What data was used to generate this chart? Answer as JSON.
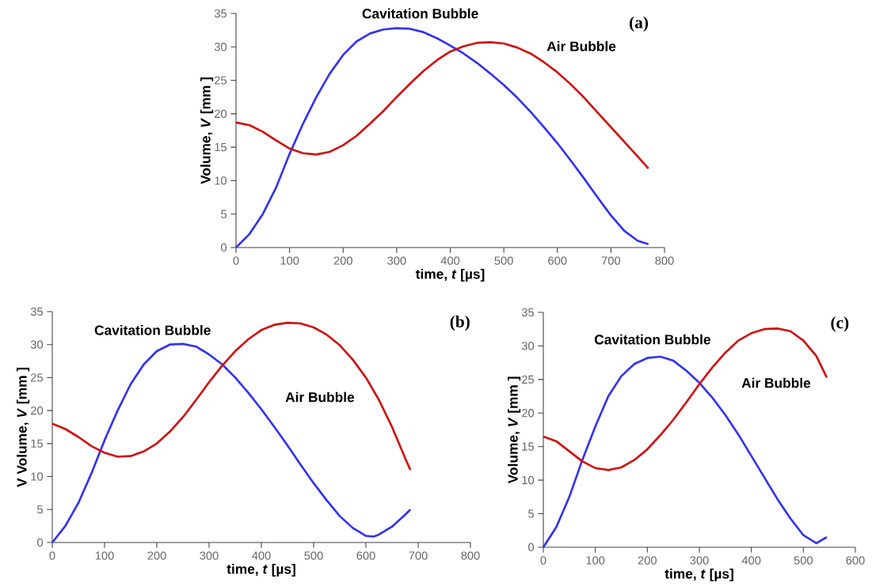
{
  "chart_data": [
    {
      "type": "line",
      "title": "(a)",
      "xlabel": "time, *t* [µs]",
      "ylabel": "Volume, *V* [mm ]",
      "xlim": [
        0,
        800
      ],
      "ylim": [
        0,
        35
      ],
      "xticks": [
        0,
        100,
        200,
        300,
        400,
        500,
        600,
        700,
        800
      ],
      "yticks": [
        0,
        5,
        10,
        15,
        20,
        25,
        30,
        35
      ],
      "series": [
        {
          "name": "Cavitation Bubble",
          "color": "#3333ee",
          "x": [
            0,
            25,
            50,
            75,
            100,
            125,
            150,
            175,
            200,
            225,
            250,
            275,
            300,
            325,
            350,
            375,
            400,
            425,
            450,
            475,
            500,
            525,
            550,
            575,
            600,
            625,
            650,
            675,
            700,
            725,
            750,
            770
          ],
          "values": [
            0,
            2,
            5,
            9,
            14,
            18.5,
            22.5,
            26,
            28.8,
            30.8,
            32,
            32.6,
            32.8,
            32.7,
            32.2,
            31.3,
            30.2,
            29,
            27.6,
            26,
            24.3,
            22.4,
            20.3,
            18,
            15.6,
            13,
            10.3,
            7.5,
            4.8,
            2.5,
            1,
            0.5
          ]
        },
        {
          "name": "Air Bubble",
          "color": "#cc1111",
          "x": [
            0,
            25,
            50,
            75,
            100,
            125,
            150,
            175,
            200,
            225,
            250,
            275,
            300,
            325,
            350,
            375,
            400,
            425,
            450,
            475,
            500,
            525,
            550,
            575,
            600,
            625,
            650,
            675,
            700,
            725,
            750,
            770
          ],
          "values": [
            18.7,
            18.3,
            17.3,
            16,
            14.8,
            14.1,
            13.9,
            14.3,
            15.3,
            16.7,
            18.5,
            20.4,
            22.5,
            24.5,
            26.4,
            28,
            29.3,
            30.1,
            30.6,
            30.7,
            30.5,
            29.9,
            29,
            27.7,
            26.2,
            24.4,
            22.4,
            20.2,
            18,
            15.8,
            13.6,
            11.8
          ]
        }
      ]
    },
    {
      "type": "line",
      "title": "(b)",
      "xlabel": "time, *t* [µs]",
      "ylabel": "V Volume, *V* [mm ]",
      "xlim": [
        0,
        800
      ],
      "ylim": [
        0,
        35
      ],
      "xticks": [
        0,
        100,
        200,
        300,
        400,
        500,
        600,
        700,
        800
      ],
      "yticks": [
        0,
        5,
        10,
        15,
        20,
        25,
        30,
        35
      ],
      "series": [
        {
          "name": "Cavitation Bubble",
          "color": "#3333ee",
          "x": [
            0,
            25,
            50,
            75,
            100,
            125,
            150,
            175,
            200,
            225,
            250,
            275,
            300,
            325,
            350,
            375,
            400,
            425,
            450,
            475,
            500,
            525,
            550,
            575,
            600,
            615,
            625,
            650,
            675,
            685
          ],
          "values": [
            0,
            2.5,
            6,
            10.5,
            15.5,
            20,
            24,
            27,
            29,
            30,
            30.1,
            29.7,
            28.5,
            27,
            25,
            22.7,
            20.2,
            17.5,
            14.7,
            11.8,
            9,
            6.4,
            4,
            2.2,
            1,
            0.9,
            1.2,
            2.4,
            4.2,
            5
          ]
        },
        {
          "name": "Air Bubble",
          "color": "#cc1111",
          "x": [
            0,
            25,
            50,
            75,
            100,
            125,
            150,
            175,
            200,
            225,
            250,
            275,
            300,
            325,
            350,
            375,
            400,
            425,
            450,
            475,
            500,
            525,
            550,
            575,
            600,
            625,
            650,
            675,
            685
          ],
          "values": [
            18,
            17.2,
            16,
            14.6,
            13.6,
            13,
            13.1,
            13.8,
            15,
            16.8,
            19,
            21.6,
            24.3,
            26.8,
            29,
            30.8,
            32.2,
            33,
            33.3,
            33.2,
            32.6,
            31.5,
            29.9,
            27.7,
            25,
            21.6,
            17.5,
            12.8,
            11
          ]
        }
      ]
    },
    {
      "type": "line",
      "title": "(c)",
      "xlabel": "time, *t* [µs]",
      "ylabel": "Volume, *V* [mm ]",
      "xlim": [
        0,
        600
      ],
      "ylim": [
        0,
        35
      ],
      "xticks": [
        0,
        100,
        200,
        300,
        400,
        500,
        600
      ],
      "yticks": [
        0,
        5,
        10,
        15,
        20,
        25,
        30,
        35
      ],
      "series": [
        {
          "name": "Cavitation Bubble",
          "color": "#3333ee",
          "x": [
            0,
            25,
            50,
            75,
            100,
            125,
            150,
            175,
            200,
            225,
            250,
            275,
            300,
            325,
            350,
            375,
            400,
            425,
            450,
            475,
            500,
            525,
            545
          ],
          "values": [
            0,
            3,
            7.5,
            13,
            18,
            22.5,
            25.5,
            27.3,
            28.2,
            28.4,
            27.8,
            26.3,
            24.5,
            22.3,
            19.7,
            16.8,
            13.6,
            10.4,
            7.2,
            4.3,
            1.8,
            0.6,
            1.5
          ]
        },
        {
          "name": "Air Bubble",
          "color": "#cc1111",
          "x": [
            0,
            25,
            50,
            75,
            100,
            125,
            150,
            175,
            200,
            225,
            250,
            275,
            300,
            325,
            350,
            375,
            400,
            425,
            450,
            475,
            500,
            525,
            545
          ],
          "values": [
            16.5,
            15.8,
            14.3,
            12.8,
            11.8,
            11.5,
            11.9,
            13,
            14.6,
            16.7,
            19,
            21.6,
            24.3,
            26.8,
            29,
            30.8,
            31.9,
            32.5,
            32.6,
            32.2,
            30.8,
            28.5,
            25.3
          ]
        }
      ]
    }
  ]
}
